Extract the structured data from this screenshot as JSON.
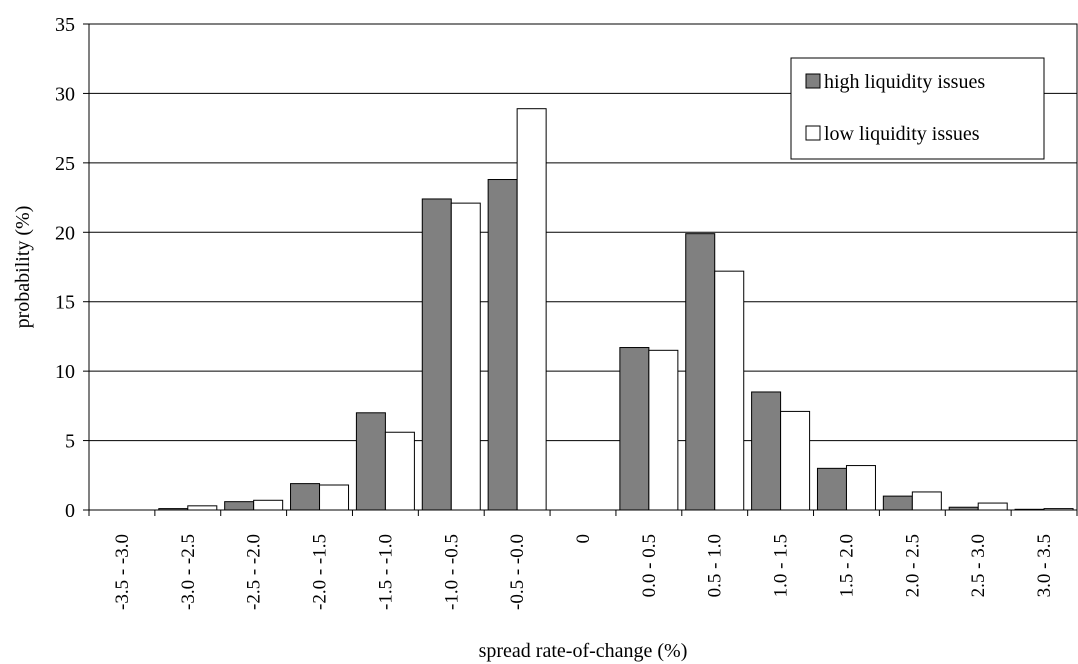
{
  "chart_data": {
    "type": "bar",
    "xlabel": "spread rate-of-change (%)",
    "ylabel": "probability (%)",
    "ylim": [
      0,
      35
    ],
    "yticks": [
      0,
      5,
      10,
      15,
      20,
      25,
      30,
      35
    ],
    "grid": "horizontal",
    "legend_position": "top-right",
    "categories": [
      "-3.5 - -3.0",
      "-3.0 - -2.5",
      "-2.5 - -2.0",
      "-2.0 - -1.5",
      "-1.5 - -1.0",
      "-1.0 - -0.5",
      "-0.5 - -0.0",
      "0",
      "0.0 - 0.5",
      "0.5 - 1.0",
      "1.0 - 1.5",
      "1.5 - 2.0",
      "2.0 - 2.5",
      "2.5 - 3.0",
      "3.0 - 3.5"
    ],
    "series": [
      {
        "name": "high liquidity issues",
        "color": "#808080",
        "values": [
          0.0,
          0.1,
          0.6,
          1.9,
          7.0,
          22.4,
          23.8,
          0,
          11.7,
          19.9,
          8.5,
          3.0,
          1.0,
          0.2,
          0.05
        ]
      },
      {
        "name": "low liquidity issues",
        "color": "#ffffff",
        "values": [
          0.0,
          0.3,
          0.7,
          1.8,
          5.6,
          22.1,
          28.9,
          0,
          11.5,
          17.2,
          7.1,
          3.2,
          1.3,
          0.5,
          0.1
        ]
      }
    ]
  }
}
